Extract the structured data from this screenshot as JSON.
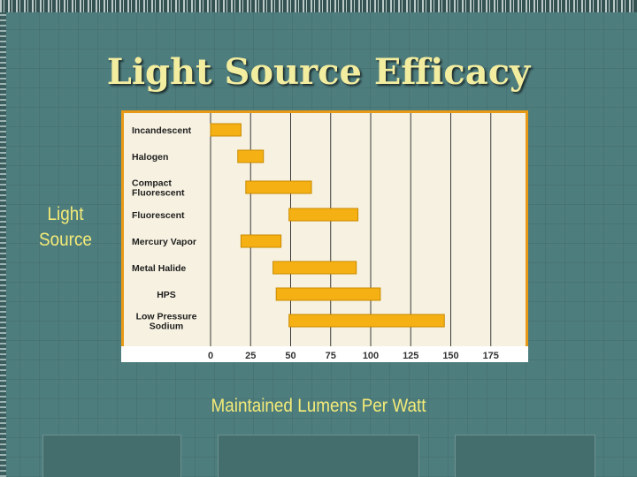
{
  "slide": {
    "title": "Light Source Efficacy",
    "side_label": "Light Source",
    "x_axis_label": "Maintained Lumens Per Watt"
  },
  "colors": {
    "background": "#4e7d7e",
    "title": "#f3eda0",
    "label_text": "#f4eb77",
    "bar_fill": "#f5b014",
    "bar_stroke": "#c98a00",
    "plot_bg": "#f6f1e0",
    "frame_border": "#e89a16"
  },
  "chart_data": {
    "type": "bar",
    "orientation": "horizontal",
    "title": "",
    "xlabel": "Maintained Lumens Per Watt",
    "ylabel": "Light Source",
    "xlim": [
      0,
      190
    ],
    "xticks": [
      0,
      25,
      50,
      75,
      100,
      125,
      150,
      175
    ],
    "grid": true,
    "categories": [
      [
        "Incandescent"
      ],
      [
        "Halogen"
      ],
      [
        "Compact",
        "Fluorescent"
      ],
      [
        "Fluorescent"
      ],
      [
        "Mercury Vapor"
      ],
      [
        "Metal Halide"
      ],
      [
        "HPS"
      ],
      [
        "Low Pressure",
        "Sodium"
      ]
    ],
    "ranges": [
      [
        0,
        19
      ],
      [
        17,
        33
      ],
      [
        22,
        63
      ],
      [
        49,
        92
      ],
      [
        19,
        44
      ],
      [
        39,
        91
      ],
      [
        41,
        106
      ],
      [
        49,
        146
      ]
    ]
  }
}
